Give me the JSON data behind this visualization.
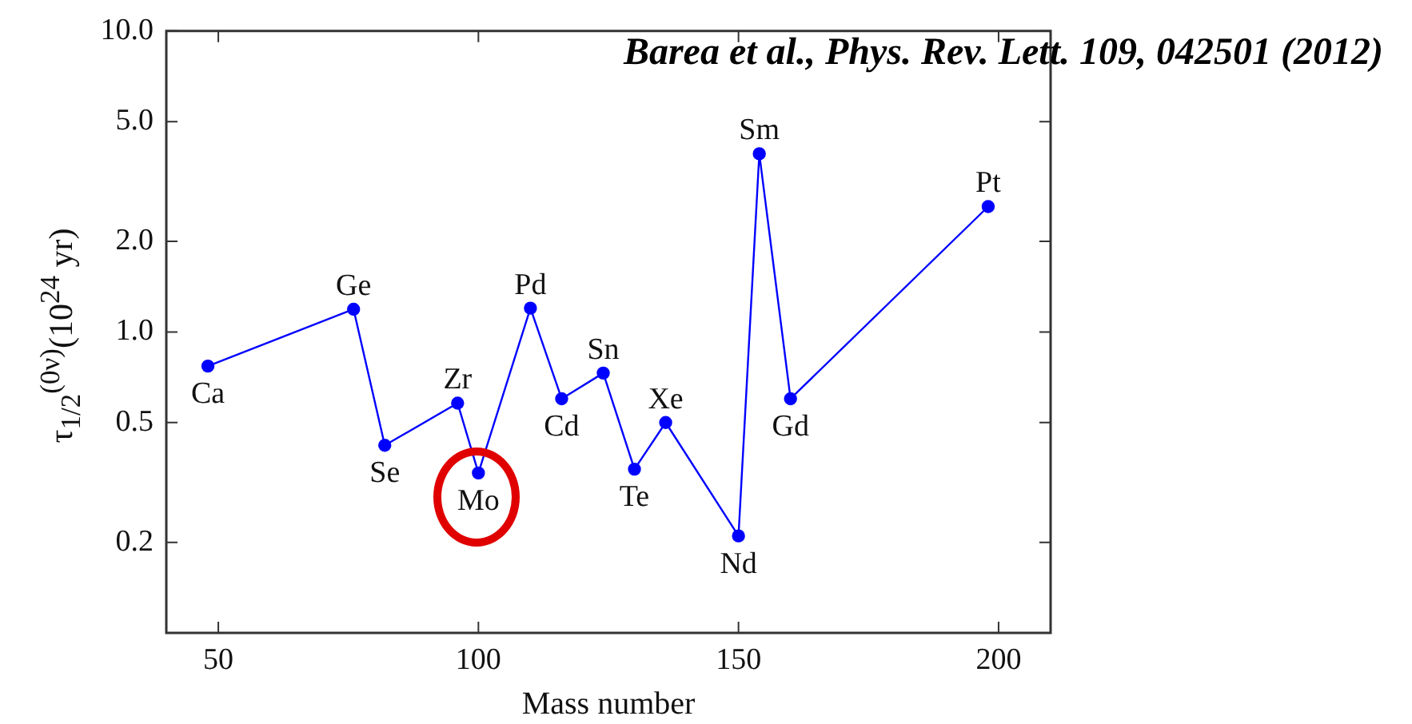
{
  "chart_data": {
    "type": "line",
    "xlabel": "Mass number",
    "ylabel": "τ$_{1/2}$$^{(0ν)}$(10$^{24}$ yr)",
    "x": [
      48,
      76,
      82,
      96,
      100,
      110,
      116,
      124,
      130,
      136,
      150,
      154,
      160,
      198
    ],
    "series": [
      {
        "color": "#0000ff",
        "values": [
          0.77,
          1.19,
          0.42,
          0.58,
          0.34,
          1.2,
          0.6,
          0.73,
          0.35,
          0.5,
          0.21,
          3.91,
          0.6,
          2.61
        ]
      }
    ],
    "xlim": [
      40,
      210
    ],
    "xticks": [
      50,
      100,
      150,
      200
    ],
    "ylim": [
      0.1,
      10
    ],
    "log": "y",
    "yticks": [
      {
        "value": 0.2,
        "label": "0.2"
      },
      {
        "value": 0.5,
        "label": "0.5"
      },
      {
        "value": 1,
        "label": "1.0"
      },
      {
        "value": 2,
        "label": "2.0"
      },
      {
        "value": 5,
        "label": "5.0"
      },
      {
        "value": 10,
        "label": "10.0"
      }
    ],
    "grid": false,
    "legend": false,
    "marker": "circle",
    "line_style": "solid",
    "annotations": [
      "Barea et al., Phys. Rev. Lett. 109, 042501 (2012)",
      {
        "text": "Ca",
        "x": 48,
        "y": 0.77
      },
      {
        "text": "Ge",
        "x": 76,
        "y": 1.19
      },
      {
        "text": "Se",
        "x": 82,
        "y": 0.42
      },
      {
        "text": "Zr",
        "x": 96,
        "y": 0.58
      },
      {
        "text": "Mo",
        "x": 100,
        "y": 0.34
      },
      {
        "text": "Pd",
        "x": 110,
        "y": 1.2
      },
      {
        "text": "Cd",
        "x": 116,
        "y": 0.6
      },
      {
        "text": "Sn",
        "x": 124,
        "y": 0.73
      },
      {
        "text": "Te",
        "x": 130,
        "y": 0.35
      },
      {
        "text": "Xe",
        "x": 136,
        "y": 0.5
      },
      {
        "text": "Nd",
        "x": 150,
        "y": 0.21
      },
      {
        "text": "Sm",
        "x": 154,
        "y": 3.91
      },
      {
        "text": "Gd",
        "x": 160,
        "y": 0.6
      },
      {
        "text": "Pt",
        "x": 198,
        "y": 2.61
      }
    ]
  }
}
